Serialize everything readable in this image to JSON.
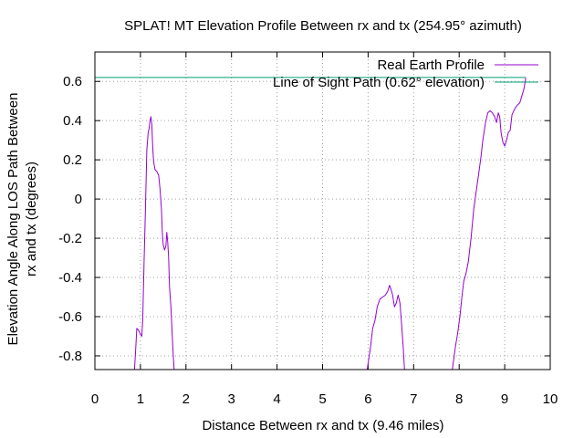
{
  "chart_data": {
    "type": "line",
    "title": "SPLAT! MT Elevation Profile Between rx and tx (254.95° azimuth)",
    "xlabel": "Distance Between rx and tx (9.46 miles)",
    "ylabel_line1": "Elevation Angle Along LOS Path Between",
    "ylabel_line2": "rx and tx (degrees)",
    "xlim": [
      0,
      10
    ],
    "ylim": [
      -0.87,
      0.75
    ],
    "xticks": [
      0,
      1,
      2,
      3,
      4,
      5,
      6,
      7,
      8,
      9,
      10
    ],
    "xtick_labels": [
      "0",
      "1",
      "2",
      "3",
      "4",
      "5",
      "6",
      "7",
      "8",
      "9",
      "10"
    ],
    "yticks": [
      -0.8,
      -0.6,
      -0.4,
      -0.2,
      0,
      0.2,
      0.4,
      0.6
    ],
    "ytick_labels": [
      "-0.8",
      "-0.6",
      "-0.4",
      "-0.2",
      "0",
      "0.2",
      "0.4",
      "0.6"
    ],
    "grid": true,
    "legend_position": "top-right",
    "series": [
      {
        "name": "Real Earth Profile",
        "color": "#9400d3",
        "segments": [
          [
            [
              0.87,
              -0.87
            ],
            [
              0.9,
              -0.75
            ],
            [
              0.92,
              -0.66
            ],
            [
              0.96,
              -0.67
            ],
            [
              1.0,
              -0.69
            ],
            [
              1.03,
              -0.7
            ],
            [
              1.05,
              -0.62
            ],
            [
              1.08,
              -0.32
            ],
            [
              1.11,
              -0.05
            ],
            [
              1.14,
              0.25
            ],
            [
              1.17,
              0.34
            ],
            [
              1.19,
              0.36
            ],
            [
              1.21,
              0.4
            ],
            [
              1.23,
              0.42
            ],
            [
              1.25,
              0.38
            ],
            [
              1.27,
              0.26
            ],
            [
              1.29,
              0.19
            ],
            [
              1.32,
              0.15
            ],
            [
              1.36,
              0.14
            ],
            [
              1.4,
              0.12
            ],
            [
              1.43,
              0.05
            ],
            [
              1.46,
              -0.05
            ],
            [
              1.48,
              -0.17
            ],
            [
              1.5,
              -0.23
            ],
            [
              1.53,
              -0.26
            ],
            [
              1.56,
              -0.24
            ],
            [
              1.58,
              -0.17
            ],
            [
              1.6,
              -0.22
            ],
            [
              1.62,
              -0.3
            ],
            [
              1.64,
              -0.45
            ],
            [
              1.67,
              -0.55
            ],
            [
              1.69,
              -0.65
            ],
            [
              1.71,
              -0.75
            ],
            [
              1.74,
              -0.87
            ]
          ],
          [
            [
              5.98,
              -0.87
            ],
            [
              6.05,
              -0.76
            ],
            [
              6.1,
              -0.66
            ],
            [
              6.15,
              -0.62
            ],
            [
              6.2,
              -0.55
            ],
            [
              6.26,
              -0.51
            ],
            [
              6.32,
              -0.5
            ],
            [
              6.38,
              -0.49
            ],
            [
              6.43,
              -0.47
            ],
            [
              6.47,
              -0.44
            ],
            [
              6.5,
              -0.46
            ],
            [
              6.54,
              -0.49
            ],
            [
              6.58,
              -0.55
            ],
            [
              6.62,
              -0.53
            ],
            [
              6.66,
              -0.49
            ],
            [
              6.7,
              -0.53
            ],
            [
              6.73,
              -0.62
            ],
            [
              6.77,
              -0.75
            ],
            [
              6.8,
              -0.87
            ]
          ],
          [
            [
              7.85,
              -0.87
            ],
            [
              7.92,
              -0.75
            ],
            [
              7.97,
              -0.68
            ],
            [
              8.02,
              -0.59
            ],
            [
              8.06,
              -0.5
            ],
            [
              8.1,
              -0.42
            ],
            [
              8.15,
              -0.38
            ],
            [
              8.2,
              -0.32
            ],
            [
              8.26,
              -0.2
            ],
            [
              8.32,
              -0.05
            ],
            [
              8.38,
              0.05
            ],
            [
              8.44,
              0.15
            ],
            [
              8.48,
              0.22
            ],
            [
              8.52,
              0.3
            ],
            [
              8.58,
              0.39
            ],
            [
              8.63,
              0.44
            ],
            [
              8.68,
              0.45
            ],
            [
              8.73,
              0.44
            ],
            [
              8.78,
              0.42
            ],
            [
              8.82,
              0.39
            ],
            [
              8.86,
              0.44
            ],
            [
              8.89,
              0.42
            ],
            [
              8.92,
              0.34
            ],
            [
              8.96,
              0.29
            ],
            [
              9.0,
              0.27
            ],
            [
              9.04,
              0.3
            ],
            [
              9.08,
              0.34
            ],
            [
              9.12,
              0.35
            ],
            [
              9.16,
              0.43
            ],
            [
              9.22,
              0.46
            ],
            [
              9.28,
              0.48
            ],
            [
              9.33,
              0.49
            ],
            [
              9.38,
              0.53
            ],
            [
              9.42,
              0.56
            ],
            [
              9.45,
              0.6
            ],
            [
              9.46,
              0.62
            ]
          ]
        ]
      },
      {
        "name": "Line of Sight Path (0.62° elevation)",
        "color": "#009e73",
        "segments": [
          [
            [
              0,
              0.62
            ],
            [
              9.46,
              0.62
            ]
          ]
        ]
      }
    ]
  }
}
